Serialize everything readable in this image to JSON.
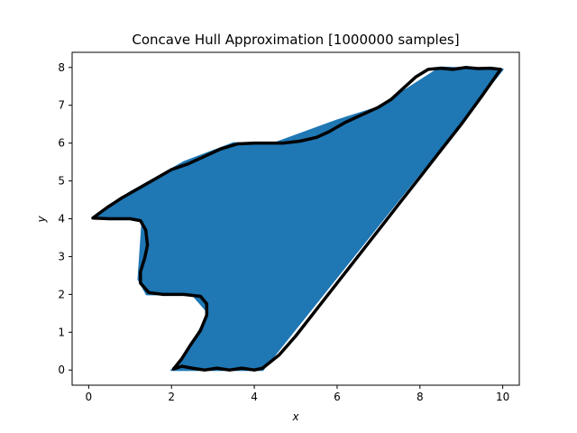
{
  "chart_data": {
    "type": "scatter",
    "title": "Concave Hull Approximation [1000000 samples]",
    "xlabel": "x",
    "ylabel": "y",
    "xlim": [
      -0.4,
      10.4
    ],
    "ylim": [
      -0.4,
      8.4
    ],
    "xticks": [
      0,
      2,
      4,
      6,
      8,
      10
    ],
    "yticks": [
      0,
      1,
      2,
      3,
      4,
      5,
      6,
      7,
      8
    ],
    "grid": false,
    "legend": "none",
    "sample_count": 1000000,
    "series": [
      {
        "kind": "point-cloud",
        "color": "#1f77b4",
        "region": [
          [
            2.0,
            0.0
          ],
          [
            4.2,
            0.0
          ],
          [
            10.0,
            7.95
          ],
          [
            8.5,
            8.0
          ],
          [
            7.0,
            6.95
          ],
          [
            6.0,
            6.6
          ],
          [
            4.5,
            6.0
          ],
          [
            3.5,
            6.0
          ],
          [
            2.3,
            5.5
          ],
          [
            1.0,
            4.7
          ],
          [
            0.1,
            4.0
          ],
          [
            1.3,
            4.0
          ],
          [
            1.2,
            2.4
          ],
          [
            1.4,
            2.0
          ],
          [
            2.5,
            2.0
          ],
          [
            2.9,
            1.5
          ],
          [
            2.6,
            0.9
          ],
          [
            2.1,
            0.05
          ]
        ]
      },
      {
        "kind": "hull-outline",
        "color": "#000000",
        "points": [
          [
            2.05,
            0.03
          ],
          [
            2.25,
            0.1
          ],
          [
            2.5,
            0.05
          ],
          [
            2.8,
            0.0
          ],
          [
            3.1,
            0.05
          ],
          [
            3.4,
            0.0
          ],
          [
            3.7,
            0.05
          ],
          [
            4.0,
            0.0
          ],
          [
            4.2,
            0.05
          ],
          [
            4.6,
            0.4
          ],
          [
            5.0,
            0.9
          ],
          [
            5.5,
            1.6
          ],
          [
            6.0,
            2.3
          ],
          [
            6.5,
            3.0
          ],
          [
            7.0,
            3.7
          ],
          [
            7.5,
            4.4
          ],
          [
            8.0,
            5.1
          ],
          [
            8.5,
            5.8
          ],
          [
            9.0,
            6.5
          ],
          [
            9.5,
            7.25
          ],
          [
            9.95,
            7.95
          ],
          [
            9.7,
            7.98
          ],
          [
            9.4,
            7.97
          ],
          [
            9.1,
            8.0
          ],
          [
            8.8,
            7.95
          ],
          [
            8.5,
            7.98
          ],
          [
            8.2,
            7.95
          ],
          [
            7.9,
            7.75
          ],
          [
            7.6,
            7.45
          ],
          [
            7.3,
            7.15
          ],
          [
            7.0,
            6.95
          ],
          [
            6.6,
            6.75
          ],
          [
            6.2,
            6.55
          ],
          [
            5.8,
            6.3
          ],
          [
            5.5,
            6.15
          ],
          [
            5.1,
            6.05
          ],
          [
            4.7,
            6.0
          ],
          [
            4.3,
            6.0
          ],
          [
            4.0,
            6.0
          ],
          [
            3.6,
            5.98
          ],
          [
            3.2,
            5.85
          ],
          [
            2.8,
            5.65
          ],
          [
            2.4,
            5.45
          ],
          [
            2.0,
            5.3
          ],
          [
            1.6,
            5.05
          ],
          [
            1.2,
            4.8
          ],
          [
            0.8,
            4.55
          ],
          [
            0.45,
            4.3
          ],
          [
            0.1,
            4.02
          ],
          [
            0.5,
            4.0
          ],
          [
            1.0,
            4.0
          ],
          [
            1.25,
            3.95
          ],
          [
            1.38,
            3.7
          ],
          [
            1.42,
            3.3
          ],
          [
            1.35,
            2.95
          ],
          [
            1.25,
            2.6
          ],
          [
            1.25,
            2.3
          ],
          [
            1.45,
            2.05
          ],
          [
            1.8,
            2.0
          ],
          [
            2.3,
            2.0
          ],
          [
            2.7,
            1.95
          ],
          [
            2.85,
            1.75
          ],
          [
            2.85,
            1.45
          ],
          [
            2.7,
            1.05
          ],
          [
            2.45,
            0.65
          ],
          [
            2.25,
            0.3
          ],
          [
            2.05,
            0.03
          ]
        ]
      }
    ]
  }
}
